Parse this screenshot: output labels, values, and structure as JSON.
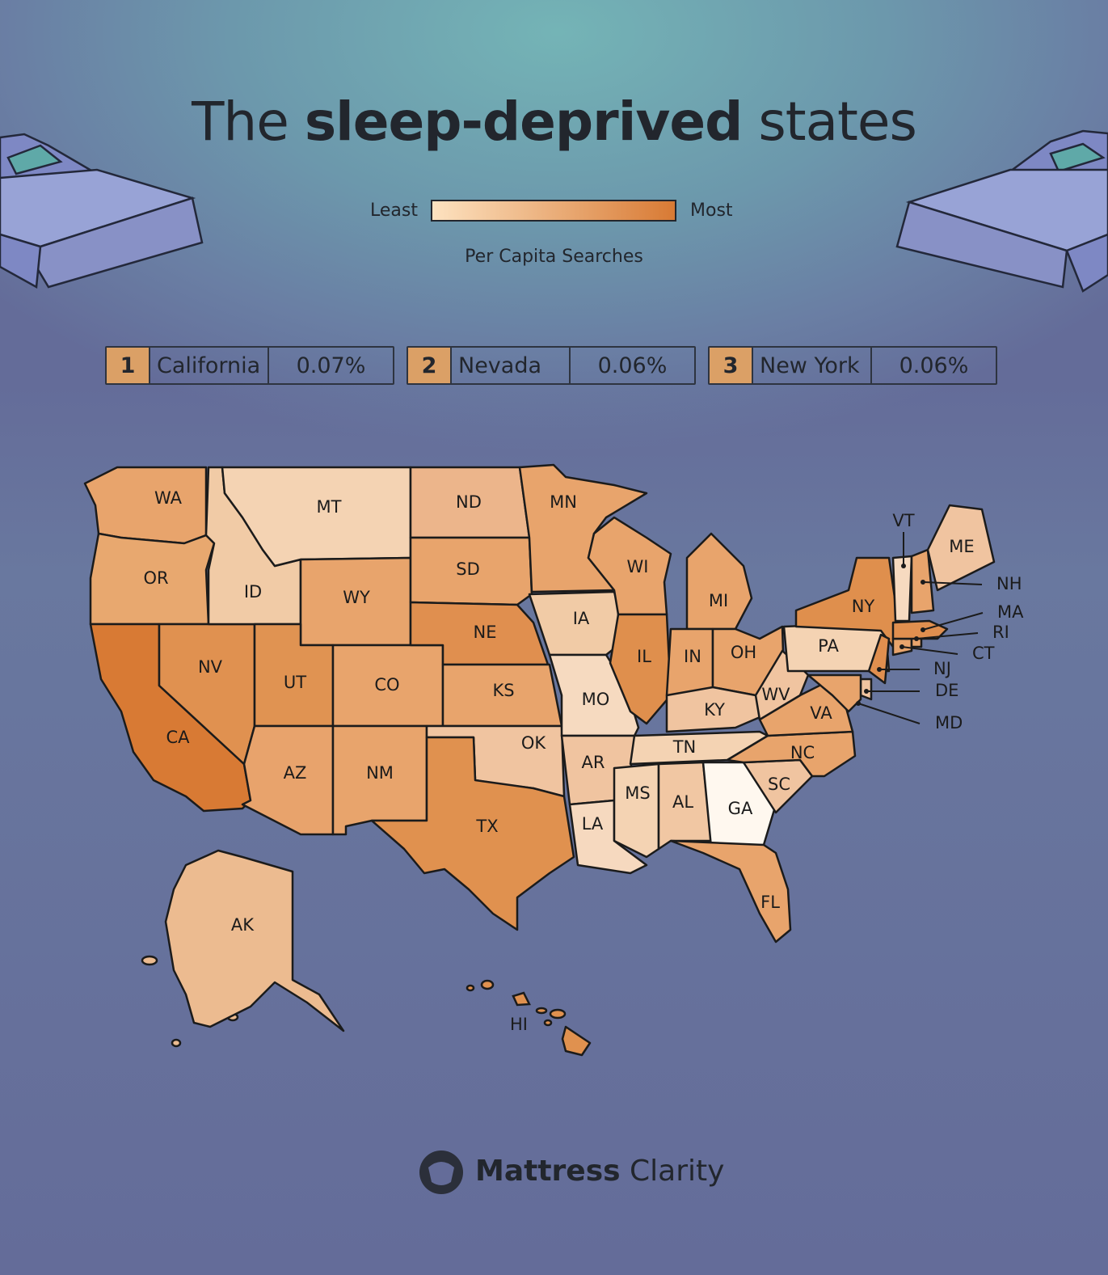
{
  "header": {
    "title": {
      "pre": "The",
      "bold": "sleep-deprived",
      "post": "states"
    }
  },
  "legend": {
    "low": "Least",
    "high": "Most",
    "caption": "Per Capita Searches",
    "colors": [
      "#fde2c0",
      "#d87a34"
    ]
  },
  "top": [
    {
      "rank": 1,
      "state": "California",
      "value": "0.07%"
    },
    {
      "rank": 2,
      "state": "Nevada",
      "value": "0.06%"
    },
    {
      "rank": 3,
      "state": "New York",
      "value": "0.06%"
    }
  ],
  "states": [
    {
      "label": "WA",
      "color": "#e8a46c"
    },
    {
      "label": "OR",
      "color": "#e8a86f"
    },
    {
      "label": "CA",
      "color": "#d87a34"
    },
    {
      "label": "NV",
      "color": "#e09150"
    },
    {
      "label": "ID",
      "color": "#f1cba6"
    },
    {
      "label": "MT",
      "color": "#f4d3b3"
    },
    {
      "label": "WY",
      "color": "#e8a46c"
    },
    {
      "label": "UT",
      "color": "#e09352"
    },
    {
      "label": "CO",
      "color": "#e8a46c"
    },
    {
      "label": "AZ",
      "color": "#e8a36c"
    },
    {
      "label": "NM",
      "color": "#e8a46c"
    },
    {
      "label": "ND",
      "color": "#ecb58b"
    },
    {
      "label": "SD",
      "color": "#e8a46c"
    },
    {
      "label": "NE",
      "color": "#e08f4f"
    },
    {
      "label": "KS",
      "color": "#e8a46c"
    },
    {
      "label": "OK",
      "color": "#f0c4a0"
    },
    {
      "label": "TX",
      "color": "#e0914f"
    },
    {
      "label": "MN",
      "color": "#e8a46c"
    },
    {
      "label": "IA",
      "color": "#f1cba6"
    },
    {
      "label": "MO",
      "color": "#f6dac0"
    },
    {
      "label": "AR",
      "color": "#f0c4a0"
    },
    {
      "label": "LA",
      "color": "#f6d9bf"
    },
    {
      "label": "WI",
      "color": "#e8a46c"
    },
    {
      "label": "IL",
      "color": "#df8f4d"
    },
    {
      "label": "MI",
      "color": "#e8a46c"
    },
    {
      "label": "IN",
      "color": "#e8a46c"
    },
    {
      "label": "OH",
      "color": "#e8a46c"
    },
    {
      "label": "KY",
      "color": "#f0c4a0"
    },
    {
      "label": "TN",
      "color": "#f4d3b3"
    },
    {
      "label": "MS",
      "color": "#f4d3b3"
    },
    {
      "label": "AL",
      "color": "#f1c7a3"
    },
    {
      "label": "GA",
      "color": "#fff8ef"
    },
    {
      "label": "FL",
      "color": "#e8a46c"
    },
    {
      "label": "SC",
      "color": "#f0c4a0"
    },
    {
      "label": "NC",
      "color": "#e8a46c"
    },
    {
      "label": "VA",
      "color": "#e8a46c"
    },
    {
      "label": "WV",
      "color": "#f0c4a0"
    },
    {
      "label": "PA",
      "color": "#f4d3b3"
    },
    {
      "label": "NY",
      "color": "#df8f4d"
    },
    {
      "label": "NJ",
      "color": "#e08f4f"
    },
    {
      "label": "DE",
      "color": "#f0c4a0"
    },
    {
      "label": "MD",
      "color": "#e8a46c"
    },
    {
      "label": "CT",
      "color": "#e8a46c"
    },
    {
      "label": "RI",
      "color": "#e8a46c"
    },
    {
      "label": "MA",
      "color": "#e08f4f"
    },
    {
      "label": "VT",
      "color": "#f6dac0"
    },
    {
      "label": "NH",
      "color": "#e8a46c"
    },
    {
      "label": "ME",
      "color": "#f0c4a0"
    },
    {
      "label": "AK",
      "color": "#ecbb90"
    },
    {
      "label": "HI",
      "color": "#e0914f"
    }
  ],
  "brand": {
    "bold": "Mattress",
    "light": "Clarity"
  }
}
